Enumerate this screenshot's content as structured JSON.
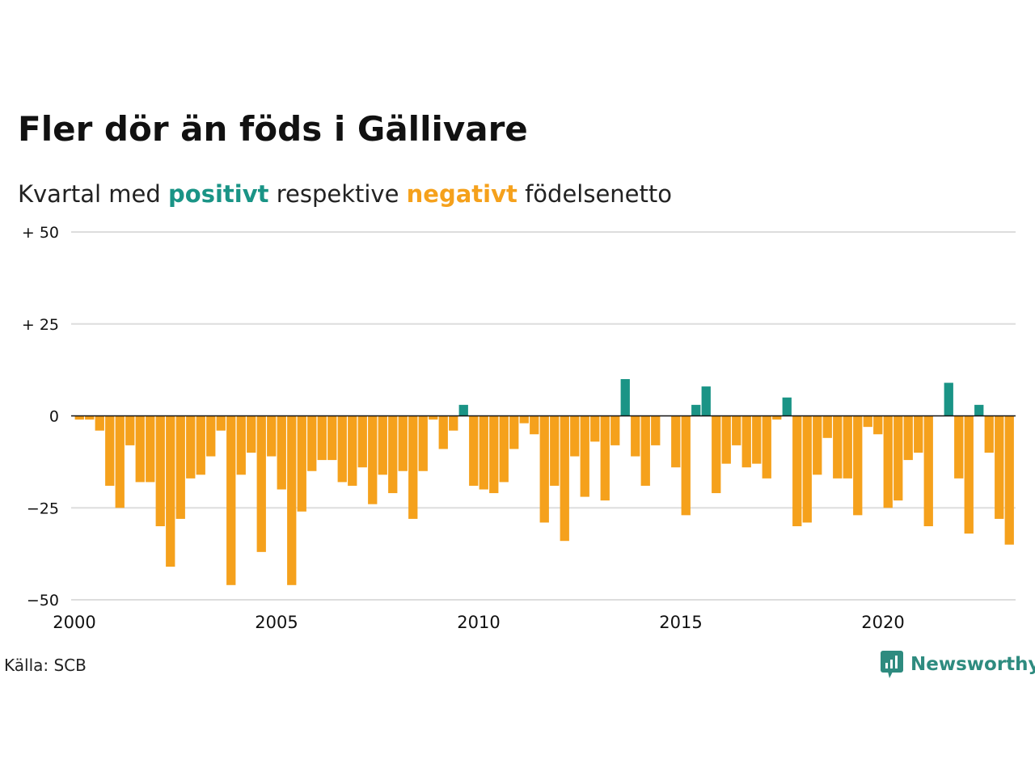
{
  "title": "Fler dör än föds i Gällivare",
  "subtitle": {
    "prefix": "Kvartal med",
    "positive_word": "positivt",
    "middle": "respektive",
    "negative_word": "negativt",
    "suffix": "födelsenetto"
  },
  "source": "Källa: SCB",
  "logo_text": "Newsworthy",
  "colors": {
    "positive": "#1a9486",
    "negative": "#f5a11c",
    "grid": "#dddddd",
    "logo": "#2e8b7f"
  },
  "chart_data": {
    "type": "bar",
    "y_ticks": [
      {
        "value": 50,
        "label": "+ 50"
      },
      {
        "value": 25,
        "label": "+ 25"
      },
      {
        "value": 0,
        "label": "0"
      },
      {
        "value": -25,
        "label": "−25"
      },
      {
        "value": -50,
        "label": "−50"
      }
    ],
    "x_ticks": [
      {
        "value": 2000,
        "label": "2000"
      },
      {
        "value": 2005,
        "label": "2005"
      },
      {
        "value": 2010,
        "label": "2010"
      },
      {
        "value": 2015,
        "label": "2015"
      },
      {
        "value": 2020,
        "label": "2020"
      }
    ],
    "ylim": [
      -50,
      50
    ],
    "grid": true,
    "start_quarter": "2000 Q1",
    "values": [
      -1,
      -1,
      -4,
      -19,
      -25,
      -8,
      -18,
      -18,
      -30,
      -41,
      -28,
      -17,
      -16,
      -11,
      -4,
      -46,
      -16,
      -10,
      -37,
      -11,
      -20,
      -46,
      -26,
      -15,
      -12,
      -12,
      -18,
      -19,
      -14,
      -24,
      -16,
      -21,
      -15,
      -28,
      -15,
      -1,
      -9,
      -4,
      3,
      -19,
      -20,
      -21,
      -18,
      -9,
      -2,
      -5,
      -29,
      -19,
      -34,
      -11,
      -22,
      -7,
      -23,
      -8,
      10,
      -11,
      -19,
      -8,
      0,
      -14,
      -27,
      3,
      8,
      -21,
      -13,
      -8,
      -14,
      -13,
      -17,
      -1,
      5,
      -30,
      -29,
      -16,
      -6,
      -17,
      -17,
      -27,
      -3,
      -5,
      -25,
      -23,
      -12,
      -10,
      -30,
      0,
      9,
      -17,
      -32,
      3,
      -10,
      -28,
      -35
    ]
  }
}
